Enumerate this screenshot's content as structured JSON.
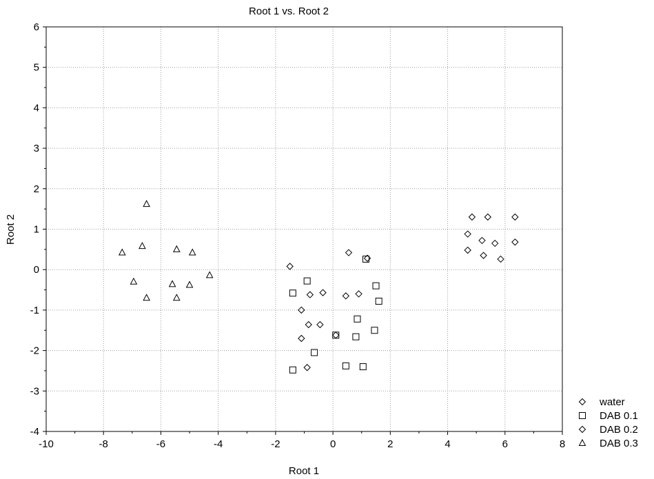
{
  "chart_data": {
    "type": "scatter",
    "title": "Root 1 vs. Root 2",
    "xlabel": "Root 1",
    "ylabel": "Root 2",
    "xlim": [
      -10,
      8
    ],
    "ylim": [
      -4,
      6
    ],
    "xticks": [
      -10,
      -8,
      -6,
      -4,
      -2,
      0,
      2,
      4,
      6,
      8
    ],
    "yticks": [
      -4,
      -3,
      -2,
      -1,
      0,
      1,
      2,
      3,
      4,
      5,
      6
    ],
    "grid": true,
    "legend_position": "bottom-right",
    "series": [
      {
        "name": "water",
        "marker": "diamond",
        "color": "#000000",
        "points": [
          [
            4.7,
            0.88
          ],
          [
            4.85,
            1.3
          ],
          [
            5.4,
            1.3
          ],
          [
            6.35,
            1.3
          ],
          [
            4.7,
            0.48
          ],
          [
            5.2,
            0.72
          ],
          [
            5.65,
            0.65
          ],
          [
            6.35,
            0.68
          ],
          [
            5.25,
            0.35
          ],
          [
            5.85,
            0.26
          ]
        ]
      },
      {
        "name": "DAB 0.1",
        "marker": "square",
        "color": "#000000",
        "points": [
          [
            -0.9,
            -0.28
          ],
          [
            -1.4,
            -0.58
          ],
          [
            1.5,
            -0.4
          ],
          [
            1.6,
            -0.78
          ],
          [
            0.85,
            -1.22
          ],
          [
            1.45,
            -1.5
          ],
          [
            0.1,
            -1.62
          ],
          [
            0.8,
            -1.66
          ],
          [
            -0.65,
            -2.05
          ],
          [
            -1.4,
            -2.48
          ],
          [
            0.45,
            -2.38
          ],
          [
            1.05,
            -2.4
          ],
          [
            1.15,
            0.26
          ]
        ]
      },
      {
        "name": "DAB 0.2",
        "marker": "diamond",
        "color": "#000000",
        "points": [
          [
            -1.5,
            0.08
          ],
          [
            0.55,
            0.42
          ],
          [
            1.2,
            0.28
          ],
          [
            -0.8,
            -0.62
          ],
          [
            -0.35,
            -0.57
          ],
          [
            0.45,
            -0.65
          ],
          [
            0.9,
            -0.6
          ],
          [
            -1.1,
            -1.0
          ],
          [
            -0.85,
            -1.36
          ],
          [
            -0.45,
            -1.36
          ],
          [
            -1.1,
            -1.7
          ],
          [
            0.1,
            -1.62
          ],
          [
            -0.9,
            -2.42
          ]
        ]
      },
      {
        "name": "DAB 0.3",
        "marker": "triangle",
        "color": "#000000",
        "points": [
          [
            -6.5,
            1.62
          ],
          [
            -7.35,
            0.42
          ],
          [
            -6.65,
            0.58
          ],
          [
            -5.45,
            0.5
          ],
          [
            -4.9,
            0.42
          ],
          [
            -6.95,
            -0.3
          ],
          [
            -5.6,
            -0.36
          ],
          [
            -5.0,
            -0.38
          ],
          [
            -4.3,
            -0.14
          ],
          [
            -6.5,
            -0.7
          ],
          [
            -5.45,
            -0.7
          ]
        ]
      }
    ]
  }
}
